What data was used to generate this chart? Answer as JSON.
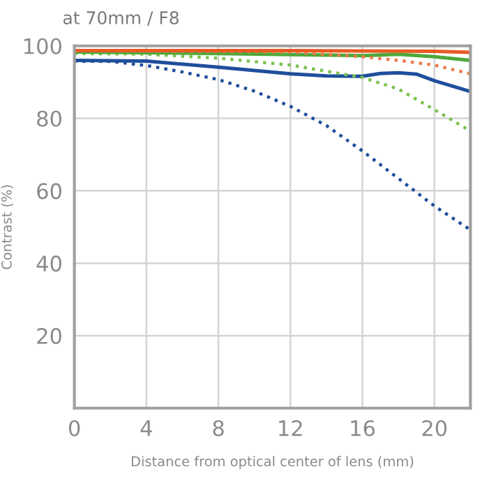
{
  "chart_data": {
    "type": "line",
    "title": "at 70mm / F8",
    "xlabel": "Distance from optical center of lens (mm)",
    "ylabel": "Contrast (%)",
    "xlim": [
      0,
      22
    ],
    "ylim": [
      0,
      100
    ],
    "xticks": [
      0,
      4,
      8,
      12,
      16,
      20
    ],
    "yticks": [
      20,
      40,
      60,
      80,
      100
    ],
    "grid": true,
    "legend": false,
    "series": [
      {
        "color": "#1f4e9c",
        "line_style": "dotted",
        "x": [
          0,
          2,
          4,
          6,
          8,
          10,
          12,
          14,
          16,
          18,
          20,
          22
        ],
        "values": [
          95.8,
          95.7,
          94.6,
          92.8,
          90.7,
          87.5,
          83.3,
          78,
          71,
          63.4,
          55.8,
          49.2
        ]
      },
      {
        "color": "#1f4e9c",
        "line_style": "solid",
        "x": [
          0,
          4,
          8,
          12,
          14,
          16,
          17,
          18,
          19,
          20,
          22
        ],
        "values": [
          96,
          95.8,
          94.1,
          92.3,
          91.7,
          91.6,
          92.4,
          92.6,
          92.2,
          90.4,
          87.4
        ]
      },
      {
        "color": "#7cc24f",
        "line_style": "dotted",
        "x": [
          0,
          4,
          8,
          12,
          16,
          18,
          20,
          22
        ],
        "values": [
          97.9,
          97.7,
          96.6,
          94.7,
          91.3,
          88.1,
          82.4,
          76.5
        ]
      },
      {
        "color": "#4ea83a",
        "line_style": "solid",
        "x": [
          0,
          8,
          16,
          18,
          20,
          22
        ],
        "values": [
          98.3,
          97.9,
          97.3,
          97.7,
          97,
          96
        ]
      },
      {
        "color": "#ee7a45",
        "line_style": "dotted",
        "x": [
          0,
          12,
          16,
          18,
          20,
          22
        ],
        "values": [
          98.7,
          98.3,
          97,
          96,
          94.7,
          92.3
        ]
      },
      {
        "color": "#e85a24",
        "line_style": "solid",
        "x": [
          0,
          12,
          20,
          22
        ],
        "values": [
          98.7,
          98.7,
          98.5,
          98.2
        ]
      }
    ]
  }
}
